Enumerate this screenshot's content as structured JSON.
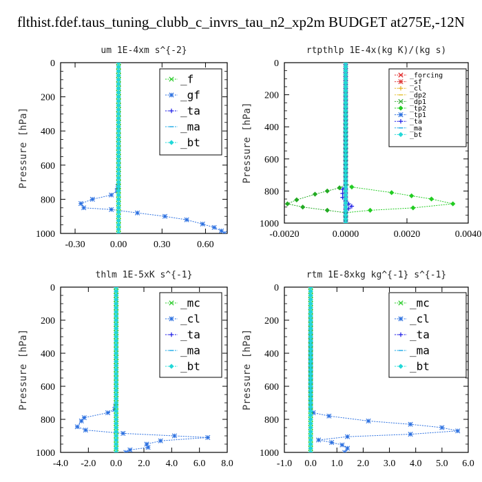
{
  "title": "flthist.fdef.taus_tuning_clubb_c_invrs_tau_n2_xp2m  BUDGET at275E,-12N",
  "chart_data": [
    {
      "type": "line",
      "title": "um   1E-4xm s^{-2}",
      "ylabel": "Pressure [hPa]",
      "xlim": [
        -0.4,
        0.75
      ],
      "ylim": [
        1000,
        0
      ],
      "x_ticks": [
        -0.3,
        0.0,
        0.3,
        0.6
      ],
      "x_tick_labels": [
        "-0.30",
        "0.00",
        "0.30",
        "0.60"
      ],
      "y_ticks": [
        0,
        200,
        400,
        600,
        800,
        1000
      ],
      "legend_position": "top-right",
      "series": [
        {
          "name": "_f",
          "color": "#2bcc2b",
          "marker": "x",
          "points": [
            [
              0,
              0
            ],
            [
              0,
              100
            ],
            [
              0,
              200
            ],
            [
              0,
              300
            ],
            [
              0,
              400
            ],
            [
              0,
              500
            ],
            [
              0,
              600
            ],
            [
              0,
              700
            ],
            [
              0,
              800
            ],
            [
              0,
              900
            ],
            [
              0,
              1000
            ]
          ]
        },
        {
          "name": "_gf",
          "color": "#2a6fe0",
          "marker": "star",
          "points": [
            [
              0,
              0
            ],
            [
              0,
              100
            ],
            [
              0,
              200
            ],
            [
              0,
              300
            ],
            [
              0,
              400
            ],
            [
              0,
              500
            ],
            [
              0,
              600
            ],
            [
              0,
              700
            ],
            [
              -0.01,
              750
            ],
            [
              -0.05,
              775
            ],
            [
              -0.18,
              800
            ],
            [
              -0.26,
              825
            ],
            [
              -0.24,
              850
            ],
            [
              -0.05,
              860
            ],
            [
              0.13,
              880
            ],
            [
              0.32,
              900
            ],
            [
              0.47,
              920
            ],
            [
              0.58,
              945
            ],
            [
              0.66,
              965
            ],
            [
              0.71,
              985
            ],
            [
              0.73,
              1000
            ]
          ]
        },
        {
          "name": "_ta",
          "color": "#1a1ae6",
          "marker": "plus",
          "points": [
            [
              0,
              0
            ],
            [
              0,
              1000
            ]
          ]
        },
        {
          "name": "_ma",
          "color": "#19a8e6",
          "marker": "dash",
          "points": [
            [
              0,
              0
            ],
            [
              0,
              1000
            ]
          ]
        },
        {
          "name": "_bt",
          "color": "#22d8d8",
          "marker": "diamond",
          "points": [
            [
              0,
              0
            ],
            [
              0,
              1000
            ]
          ]
        }
      ]
    },
    {
      "type": "line",
      "title": "rtpthlp   1E-4x(kg K)/(kg s)",
      "ylabel": "Pressure [hPa]",
      "xlim": [
        -0.002,
        0.004
      ],
      "ylim": [
        1000,
        0
      ],
      "x_ticks": [
        -0.002,
        0.0,
        0.002,
        0.004
      ],
      "x_tick_labels": [
        "-0.0020",
        "0.0000",
        "0.0020",
        "0.0040"
      ],
      "y_ticks": [
        0,
        200,
        400,
        600,
        800,
        1000
      ],
      "legend_position": "top-right",
      "series": [
        {
          "name": "_forcing",
          "color": "#e02222",
          "marker": "x",
          "points": [
            [
              0,
              0
            ],
            [
              0,
              1000
            ]
          ]
        },
        {
          "name": "_sf",
          "color": "#e03a3a",
          "marker": "star",
          "points": [
            [
              0,
              0
            ],
            [
              0,
              1000
            ]
          ]
        },
        {
          "name": "_cl",
          "color": "#e6b020",
          "marker": "plus",
          "points": [
            [
              0,
              0
            ],
            [
              0,
              1000
            ]
          ]
        },
        {
          "name": "_dp2",
          "color": "#e6c030",
          "marker": "dash",
          "points": [
            [
              0,
              0
            ],
            [
              0,
              1000
            ]
          ]
        },
        {
          "name": "_dp1",
          "color": "#33aa33",
          "marker": "x",
          "points": [
            [
              0,
              0
            ],
            [
              0,
              1000
            ]
          ]
        },
        {
          "name": "_tp2",
          "color": "#22cc22",
          "marker": "diamond",
          "points": [
            [
              0,
              0
            ],
            [
              0,
              750
            ],
            [
              0.0002,
              775
            ],
            [
              0.0015,
              810
            ],
            [
              0.0028,
              850
            ],
            [
              0.0035,
              880
            ],
            [
              0.0022,
              905
            ],
            [
              0.0008,
              920
            ],
            [
              0,
              935
            ],
            [
              0,
              1000
            ]
          ]
        },
        {
          "name": "_tp1",
          "color": "#2a6fe0",
          "marker": "star",
          "points": [
            [
              0,
              0
            ],
            [
              0,
              1000
            ]
          ]
        },
        {
          "name": "_ta",
          "color": "#1a1ae6",
          "marker": "plus",
          "points": [
            [
              0,
              0
            ],
            [
              0,
              760
            ],
            [
              -0.0001,
              790
            ],
            [
              -0.0001,
              840
            ],
            [
              0.0001,
              880
            ],
            [
              0.0002,
              895
            ],
            [
              0.0001,
              910
            ],
            [
              0,
              930
            ],
            [
              0,
              1000
            ]
          ]
        },
        {
          "name": "_ma",
          "color": "#19a8e6",
          "marker": "dash",
          "points": [
            [
              0,
              0
            ],
            [
              0,
              1000
            ]
          ]
        },
        {
          "name": "_bt",
          "color": "#22d8d8",
          "marker": "diamond",
          "points": [
            [
              0,
              0
            ],
            [
              0,
              1000
            ]
          ]
        },
        {
          "name": "",
          "color": "#22aa22",
          "marker": "diamond",
          "points": [
            [
              0,
              0
            ],
            [
              0,
              760
            ],
            [
              -0.0002,
              780
            ],
            [
              -0.001,
              820
            ],
            [
              -0.0016,
              855
            ],
            [
              -0.0019,
              880
            ],
            [
              -0.0014,
              900
            ],
            [
              -0.0006,
              920
            ],
            [
              0,
              935
            ],
            [
              0,
              1000
            ]
          ]
        }
      ]
    },
    {
      "type": "line",
      "title": "thlm   1E-5xK s^{-1}",
      "ylabel": "Pressure [hPa]",
      "xlim": [
        -4.0,
        8.0
      ],
      "ylim": [
        1000,
        0
      ],
      "x_ticks": [
        -4,
        -2,
        0,
        2,
        4,
        6,
        8
      ],
      "x_tick_labels": [
        "-4.0",
        "-2.0",
        "0.0",
        "2.0",
        "4.0",
        "6.0",
        "8.0"
      ],
      "y_ticks": [
        0,
        200,
        400,
        600,
        800,
        1000
      ],
      "legend_position": "top-right",
      "series": [
        {
          "name": "_mc",
          "color": "#2bcc2b",
          "marker": "x",
          "points": [
            [
              0,
              0
            ],
            [
              0,
              1000
            ]
          ]
        },
        {
          "name": "_cl",
          "color": "#2a6fe0",
          "marker": "star",
          "points": [
            [
              0,
              0
            ],
            [
              0,
              700
            ],
            [
              -0.1,
              740
            ],
            [
              -0.6,
              760
            ],
            [
              -2.3,
              790
            ],
            [
              -2.5,
              810
            ],
            [
              -2.8,
              845
            ],
            [
              -2.2,
              865
            ],
            [
              0.5,
              885
            ],
            [
              4.2,
              900
            ],
            [
              6.6,
              910
            ],
            [
              3.2,
              930
            ],
            [
              2.2,
              950
            ],
            [
              2.3,
              970
            ],
            [
              1.0,
              985
            ],
            [
              0.7,
              1000
            ]
          ]
        },
        {
          "name": "_ta",
          "color": "#1a1ae6",
          "marker": "plus",
          "points": [
            [
              0,
              0
            ],
            [
              0,
              1000
            ]
          ]
        },
        {
          "name": "_ma",
          "color": "#19a8e6",
          "marker": "dash",
          "points": [
            [
              0,
              0
            ],
            [
              0,
              1000
            ]
          ]
        },
        {
          "name": "_bt",
          "color": "#22d8d8",
          "marker": "diamond",
          "points": [
            [
              0,
              0
            ],
            [
              0,
              1000
            ]
          ]
        }
      ]
    },
    {
      "type": "line",
      "title": "rtm   1E-8xkg kg^{-1} s^{-1}",
      "ylabel": "Pressure [hPa]",
      "xlim": [
        -1.0,
        6.0
      ],
      "ylim": [
        1000,
        0
      ],
      "x_ticks": [
        -1,
        0,
        1,
        2,
        3,
        4,
        5,
        6
      ],
      "x_tick_labels": [
        "-1.0",
        "0.0",
        "1.0",
        "2.0",
        "3.0",
        "4.0",
        "5.0",
        "6.0"
      ],
      "y_ticks": [
        0,
        200,
        400,
        600,
        800,
        1000
      ],
      "legend_position": "top-right",
      "series": [
        {
          "name": "_mc",
          "color": "#2bcc2b",
          "marker": "x",
          "points": [
            [
              0,
              0
            ],
            [
              0,
              1000
            ]
          ]
        },
        {
          "name": "_cl",
          "color": "#2a6fe0",
          "marker": "star",
          "points": [
            [
              0,
              0
            ],
            [
              0,
              740
            ],
            [
              0.1,
              760
            ],
            [
              0.7,
              780
            ],
            [
              2.2,
              810
            ],
            [
              3.8,
              830
            ],
            [
              5.0,
              850
            ],
            [
              5.6,
              870
            ],
            [
              3.8,
              890
            ],
            [
              1.4,
              905
            ],
            [
              0.3,
              925
            ],
            [
              0.8,
              940
            ],
            [
              1.2,
              955
            ],
            [
              1.4,
              975
            ],
            [
              1.3,
              1000
            ]
          ]
        },
        {
          "name": "_ta",
          "color": "#1a1ae6",
          "marker": "plus",
          "points": [
            [
              0,
              0
            ],
            [
              0,
              1000
            ]
          ]
        },
        {
          "name": "_ma",
          "color": "#19a8e6",
          "marker": "dash",
          "points": [
            [
              0,
              0
            ],
            [
              0,
              1000
            ]
          ]
        },
        {
          "name": "_bt",
          "color": "#22d8d8",
          "marker": "diamond",
          "points": [
            [
              0,
              0
            ],
            [
              0,
              1000
            ]
          ]
        }
      ]
    }
  ]
}
